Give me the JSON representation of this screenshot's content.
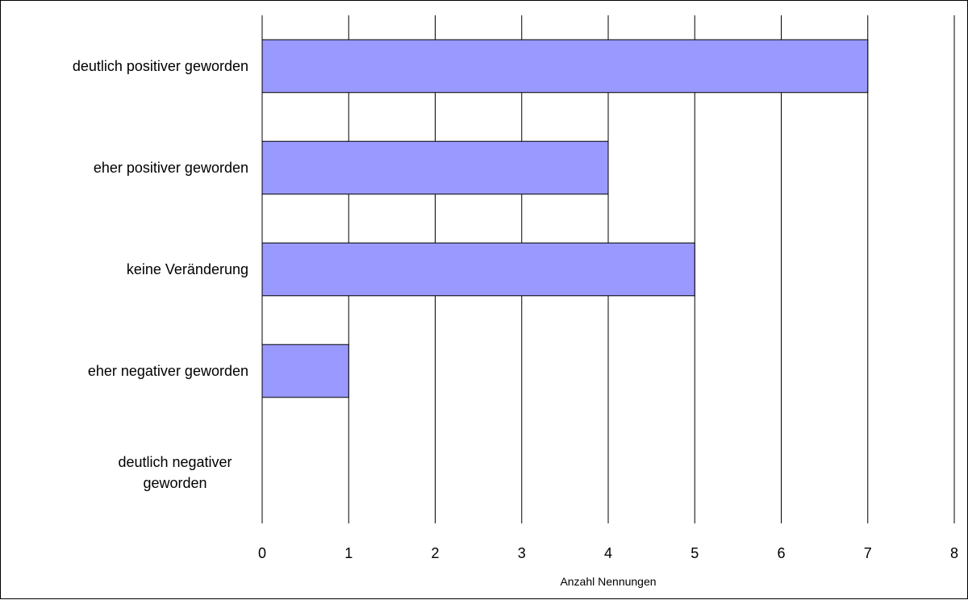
{
  "chart_data": {
    "type": "bar",
    "orientation": "horizontal",
    "categories": [
      "deutlich positiver geworden",
      "eher positiver geworden",
      "keine Veränderung",
      "eher negativer geworden",
      "deutlich negativer geworden"
    ],
    "category_lines": [
      [
        "deutlich positiver geworden"
      ],
      [
        "eher positiver geworden"
      ],
      [
        "keine Veränderung"
      ],
      [
        "eher negativer geworden"
      ],
      [
        "deutlich negativer",
        "geworden"
      ]
    ],
    "values": [
      7,
      4,
      5,
      1,
      0
    ],
    "xlabel": "Anzahl Nennungen",
    "xlim": [
      0,
      8
    ],
    "xticks": [
      0,
      1,
      2,
      3,
      4,
      5,
      6,
      7,
      8
    ],
    "grid": "vertical",
    "legend": "none",
    "bar_color": "#9999ff",
    "bar_edge_color": "#000000"
  }
}
